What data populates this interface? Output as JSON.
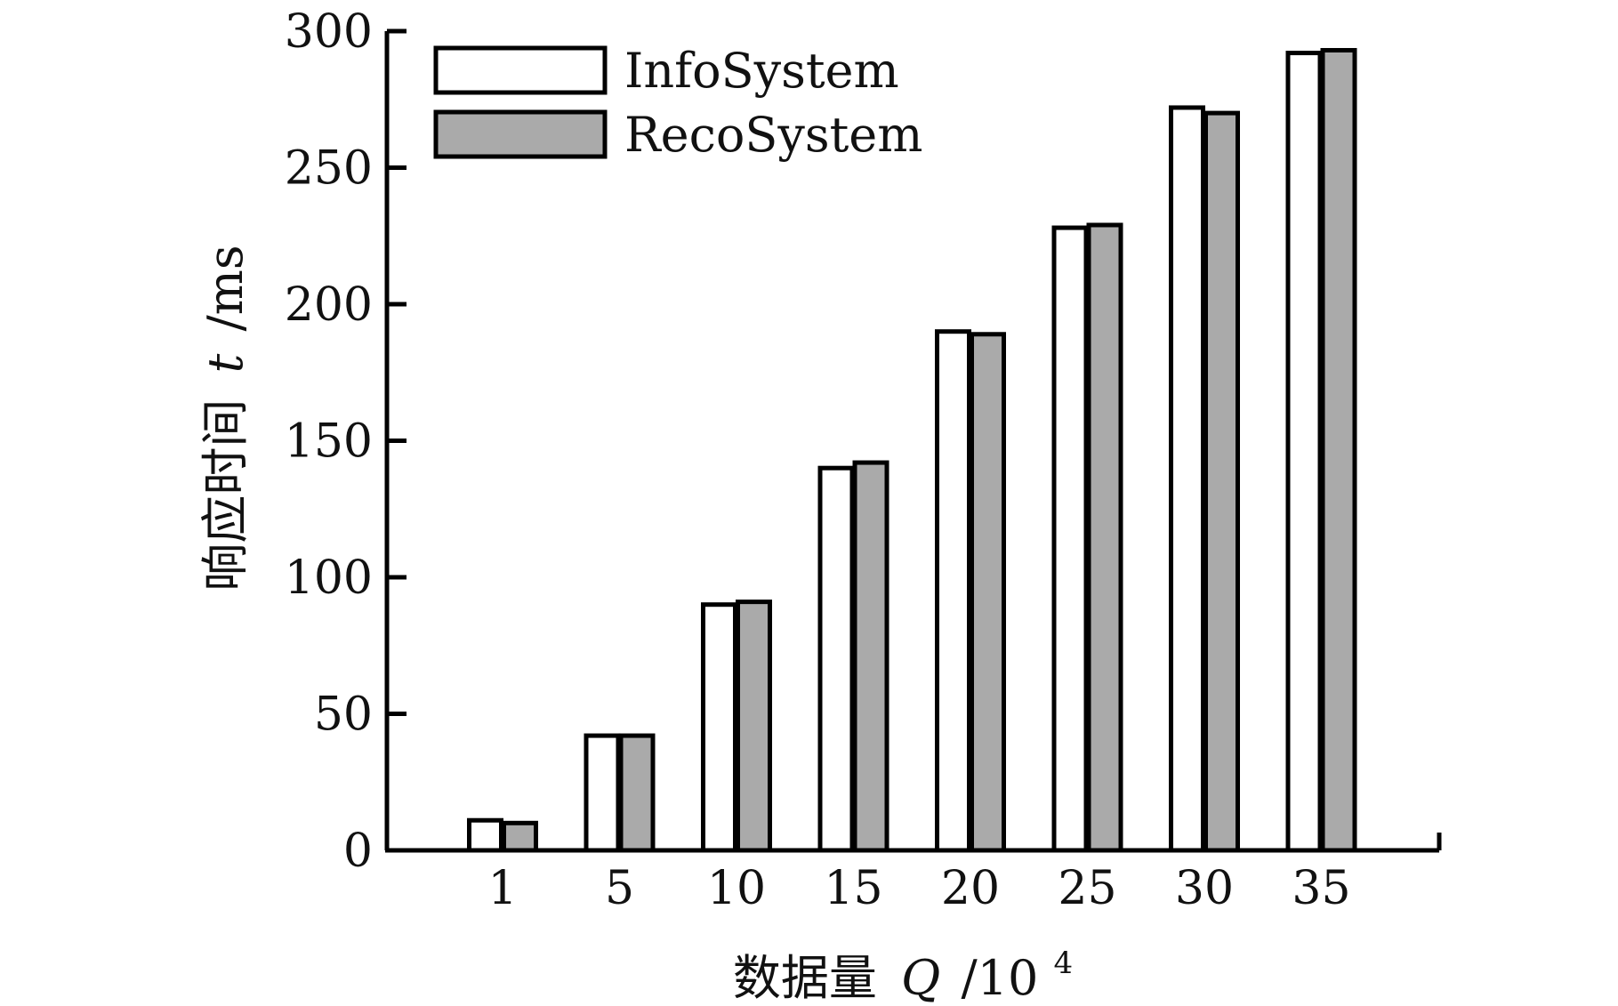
{
  "chart_data": {
    "type": "bar",
    "categories": [
      "1",
      "5",
      "10",
      "15",
      "20",
      "25",
      "30",
      "35"
    ],
    "series": [
      {
        "name": "InfoSystem",
        "values": [
          11,
          42,
          90,
          140,
          190,
          228,
          272,
          292
        ],
        "color": "#ffffff"
      },
      {
        "name": "RecoSystem",
        "values": [
          10,
          42,
          91,
          142,
          189,
          229,
          270,
          293
        ],
        "color": "#aaaaaa"
      }
    ],
    "ylim": [
      0,
      300
    ],
    "yticks": [
      "0",
      "50",
      "100",
      "150",
      "200",
      "250",
      "300"
    ],
    "ylabel": {
      "main": "响应时间",
      "var": "t",
      "unit": "/ms"
    },
    "xlabel": {
      "main": "数据量",
      "var": "Q",
      "unit": "/10",
      "sup": "4"
    },
    "legend_position": "top-left",
    "grid": false
  }
}
